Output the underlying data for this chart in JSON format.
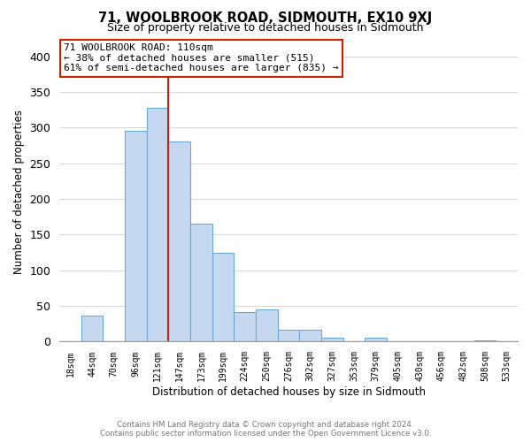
{
  "title": "71, WOOLBROOK ROAD, SIDMOUTH, EX10 9XJ",
  "subtitle": "Size of property relative to detached houses in Sidmouth",
  "xlabel": "Distribution of detached houses by size in Sidmouth",
  "ylabel": "Number of detached properties",
  "bar_labels": [
    "18sqm",
    "44sqm",
    "70sqm",
    "96sqm",
    "121sqm",
    "147sqm",
    "173sqm",
    "199sqm",
    "224sqm",
    "250sqm",
    "276sqm",
    "302sqm",
    "327sqm",
    "353sqm",
    "379sqm",
    "405sqm",
    "430sqm",
    "456sqm",
    "482sqm",
    "508sqm",
    "533sqm"
  ],
  "bar_heights": [
    0,
    37,
    0,
    295,
    328,
    280,
    165,
    125,
    42,
    45,
    17,
    17,
    5,
    0,
    6,
    0,
    0,
    0,
    0,
    2,
    0
  ],
  "bar_color": "#c5d8f0",
  "bar_edge_color": "#6aaad4",
  "ylim": [
    0,
    420
  ],
  "yticks": [
    0,
    50,
    100,
    150,
    200,
    250,
    300,
    350,
    400
  ],
  "annotation_title": "71 WOOLBROOK ROAD: 110sqm",
  "annotation_line1": "← 38% of detached houses are smaller (515)",
  "annotation_line2": "61% of semi-detached houses are larger (835) →",
  "footer_line1": "Contains HM Land Registry data © Crown copyright and database right 2024.",
  "footer_line2": "Contains public sector information licensed under the Open Government Licence v3.0.",
  "property_line_x": 4.5,
  "property_line_color": "#cc2200",
  "annotation_box_edge": "#cc2200"
}
